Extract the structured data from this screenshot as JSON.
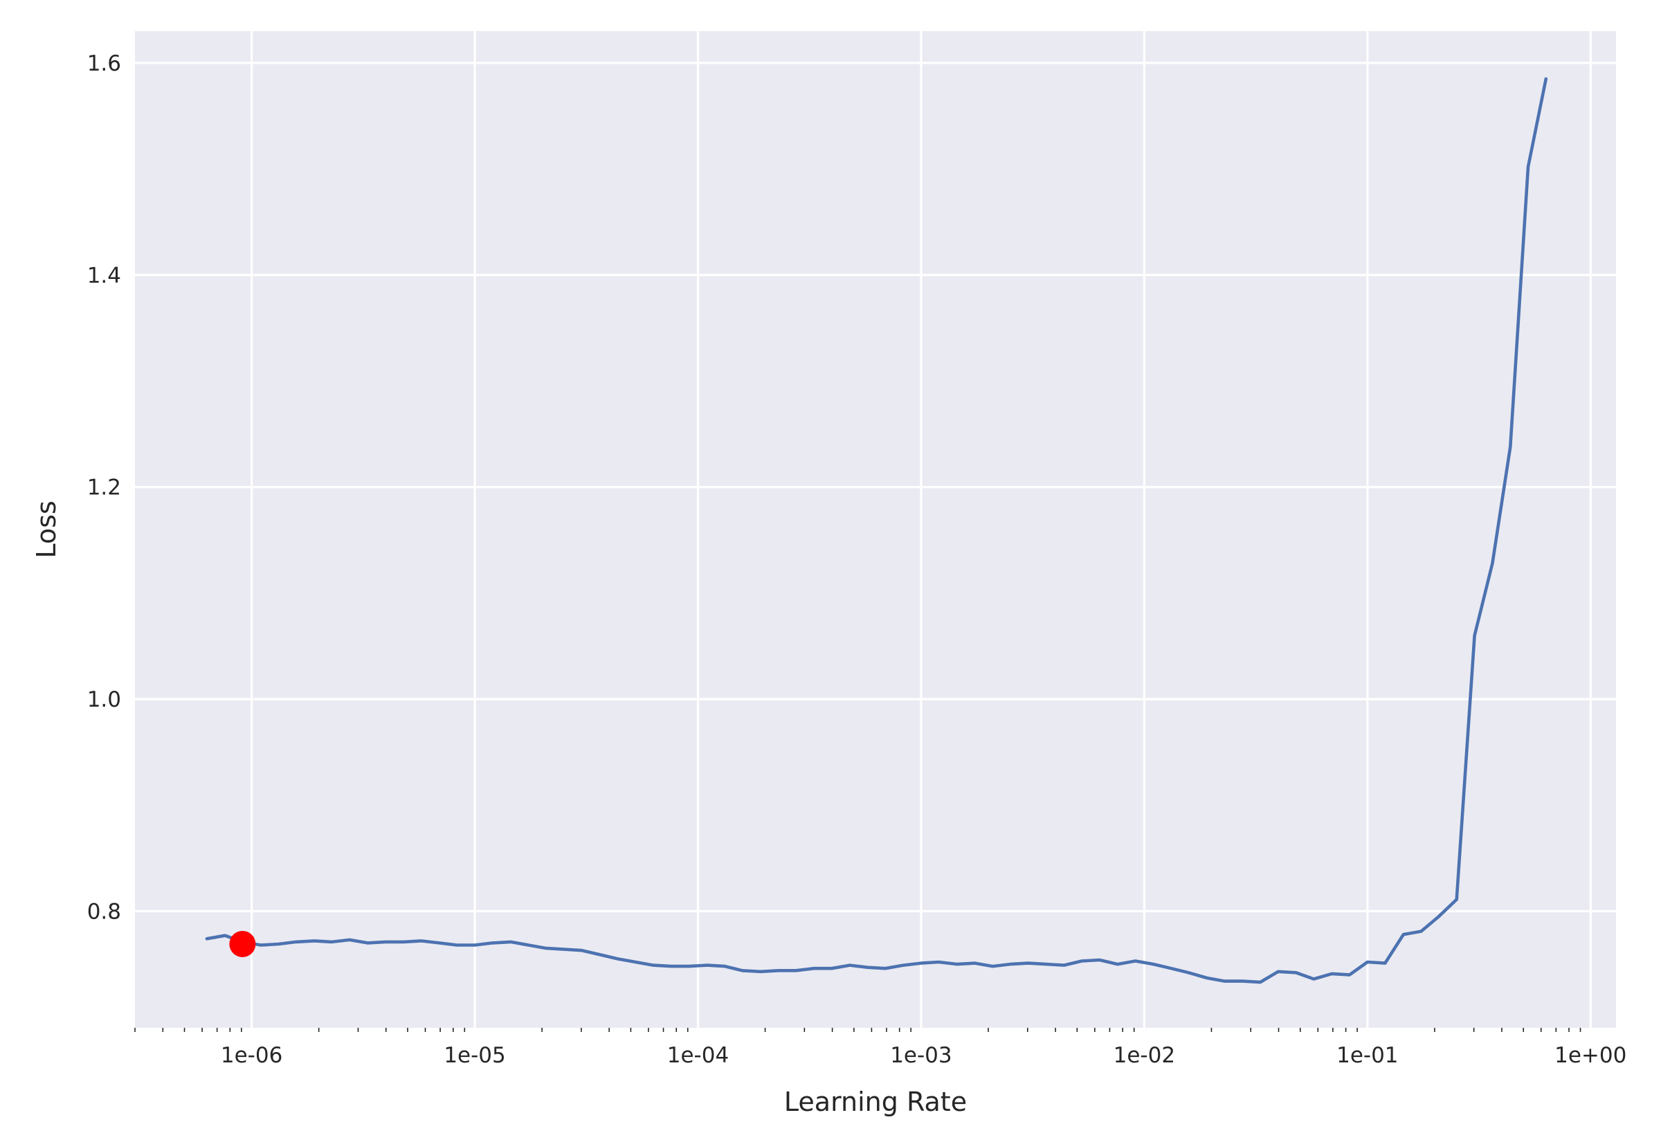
{
  "chart_data": {
    "type": "line",
    "xlabel": "Learning Rate",
    "ylabel": "Loss",
    "xscale": "log",
    "xlim": [
      3e-07,
      1.3
    ],
    "ylim": [
      0.69,
      1.63
    ],
    "grid": true,
    "x_ticks": [
      {
        "value": 1e-06,
        "label": "1e-06"
      },
      {
        "value": 1e-05,
        "label": "1e-05"
      },
      {
        "value": 0.0001,
        "label": "1e-04"
      },
      {
        "value": 0.001,
        "label": "1e-03"
      },
      {
        "value": 0.01,
        "label": "1e-02"
      },
      {
        "value": 0.1,
        "label": "1e-01"
      },
      {
        "value": 1,
        "label": "1e+00"
      }
    ],
    "y_ticks": [
      {
        "value": 0.8,
        "label": "0.8"
      },
      {
        "value": 1.0,
        "label": "1.0"
      },
      {
        "value": 1.2,
        "label": "1.2"
      },
      {
        "value": 1.4,
        "label": "1.4"
      },
      {
        "value": 1.6,
        "label": "1.6"
      }
    ],
    "series": [
      {
        "color": "#4c72b0",
        "x": [
          6.3e-07,
          7.6e-07,
          9.1e-07,
          1.1e-06,
          1.32e-06,
          1.58e-06,
          1.91e-06,
          2.29e-06,
          2.75e-06,
          3.31e-06,
          3.98e-06,
          4.79e-06,
          5.75e-06,
          6.92e-06,
          8.32e-06,
          1e-05,
          1.2e-05,
          1.45e-05,
          1.74e-05,
          2.09e-05,
          2.51e-05,
          3.02e-05,
          3.63e-05,
          4.37e-05,
          5.25e-05,
          6.31e-05,
          7.59e-05,
          9.12e-05,
          0.00011,
          0.000132,
          0.000158,
          0.000191,
          0.000229,
          0.000275,
          0.000331,
          0.000398,
          0.000479,
          0.000575,
          0.000692,
          0.000832,
          0.001,
          0.0012,
          0.00145,
          0.00174,
          0.00209,
          0.00251,
          0.00302,
          0.00363,
          0.00437,
          0.00525,
          0.00631,
          0.00759,
          0.00912,
          0.011,
          0.0132,
          0.0158,
          0.0191,
          0.0229,
          0.0275,
          0.0331,
          0.0398,
          0.0479,
          0.0575,
          0.0692,
          0.0832,
          0.1,
          0.12,
          0.145,
          0.174,
          0.209,
          0.251,
          0.302,
          0.363,
          0.437,
          0.525,
          0.631
        ],
        "y": [
          0.774,
          0.777,
          0.771,
          0.768,
          0.769,
          0.771,
          0.772,
          0.771,
          0.773,
          0.77,
          0.771,
          0.771,
          0.772,
          0.77,
          0.768,
          0.768,
          0.77,
          0.771,
          0.768,
          0.765,
          0.764,
          0.763,
          0.759,
          0.755,
          0.752,
          0.749,
          0.748,
          0.748,
          0.749,
          0.748,
          0.744,
          0.743,
          0.744,
          0.744,
          0.746,
          0.746,
          0.749,
          0.747,
          0.746,
          0.749,
          0.751,
          0.752,
          0.75,
          0.751,
          0.748,
          0.75,
          0.751,
          0.75,
          0.749,
          0.753,
          0.754,
          0.75,
          0.753,
          0.75,
          0.746,
          0.742,
          0.737,
          0.734,
          0.734,
          0.733,
          0.743,
          0.742,
          0.736,
          0.741,
          0.74,
          0.752,
          0.751,
          0.778,
          0.781,
          0.795,
          0.811,
          1.06,
          1.128,
          1.238,
          1.502,
          1.585
        ]
      }
    ],
    "marker": {
      "x": 9.1e-07,
      "y": 0.769,
      "color": "#ff0000"
    }
  }
}
